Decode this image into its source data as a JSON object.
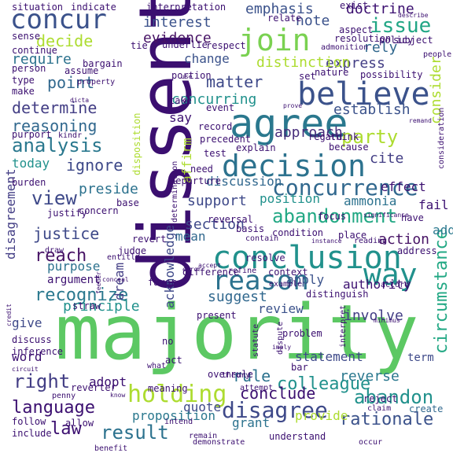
{
  "words": [
    {
      "text": "majority",
      "color": "#5cc863",
      "vertical": false
    },
    {
      "text": "dissent",
      "color": "#3b0f70",
      "vertical": true
    },
    {
      "text": "agree",
      "color": "#2a788e",
      "vertical": false
    },
    {
      "text": "believe",
      "color": "#3b528b",
      "vertical": false
    },
    {
      "text": "conclusion",
      "color": "#21918c",
      "vertical": false
    },
    {
      "text": "decision",
      "color": "#2c728e",
      "vertical": false
    },
    {
      "text": "reason",
      "color": "#2c728e",
      "vertical": false
    },
    {
      "text": "join",
      "color": "#7ad151",
      "vertical": false
    },
    {
      "text": "concur",
      "color": "#3b528b",
      "vertical": false
    },
    {
      "text": "holding",
      "color": "#addc30",
      "vertical": false
    },
    {
      "text": "way",
      "color": "#21918c",
      "vertical": false
    },
    {
      "text": "concurrence",
      "color": "#31688e",
      "vertical": false
    },
    {
      "text": "disagree",
      "color": "#3e4989",
      "vertical": false
    },
    {
      "text": "abandonment",
      "color": "#22a884",
      "vertical": false
    },
    {
      "text": "analysis",
      "color": "#2a788e",
      "vertical": false
    },
    {
      "text": "issue",
      "color": "#21a685",
      "vertical": false
    },
    {
      "text": "party",
      "color": "#addc30",
      "vertical": false
    },
    {
      "text": "right",
      "color": "#433e85",
      "vertical": false
    },
    {
      "text": "reach",
      "color": "#471365",
      "vertical": false
    },
    {
      "text": "result",
      "color": "#2c728e",
      "vertical": false
    },
    {
      "text": "view",
      "color": "#3e4989",
      "vertical": false
    },
    {
      "text": "language",
      "color": "#3b0f70",
      "vertical": false
    },
    {
      "text": "colleague",
      "color": "#21918c",
      "vertical": false
    },
    {
      "text": "rationale",
      "color": "#3b528b",
      "vertical": false
    },
    {
      "text": "abandon",
      "color": "#21918c",
      "vertical": false
    },
    {
      "text": "recognize",
      "color": "#2a788e",
      "vertical": false
    },
    {
      "text": "rule",
      "color": "#2c728e",
      "vertical": false
    },
    {
      "text": "circumstance",
      "color": "#22a884",
      "vertical": true
    },
    {
      "text": "consider",
      "color": "#addc30",
      "vertical": true
    },
    {
      "text": "matter",
      "color": "#3e4989",
      "vertical": false
    },
    {
      "text": "point",
      "color": "#31688e",
      "vertical": false
    },
    {
      "text": "determine",
      "color": "#433e85",
      "vertical": false
    },
    {
      "text": "support",
      "color": "#3e4989",
      "vertical": false
    },
    {
      "text": "justice",
      "color": "#3e4989",
      "vertical": false
    },
    {
      "text": "reasoning",
      "color": "#31688e",
      "vertical": false
    },
    {
      "text": "decide",
      "color": "#addc30",
      "vertical": false
    },
    {
      "text": "emphasis",
      "color": "#3b528b",
      "vertical": false
    },
    {
      "text": "doctrine",
      "color": "#3b0f70",
      "vertical": false
    },
    {
      "text": "interest",
      "color": "#3b528b",
      "vertical": false
    },
    {
      "text": "evidence",
      "color": "#471365",
      "vertical": false
    },
    {
      "text": "note",
      "color": "#3b528b",
      "vertical": false
    },
    {
      "text": "rely",
      "color": "#31688e",
      "vertical": false
    },
    {
      "text": "require",
      "color": "#2c728e",
      "vertical": false
    },
    {
      "text": "express",
      "color": "#433e85",
      "vertical": false
    },
    {
      "text": "establish",
      "color": "#3b528b",
      "vertical": false
    },
    {
      "text": "concurring",
      "color": "#21918c",
      "vertical": false
    },
    {
      "text": "distinction",
      "color": "#addc30",
      "vertical": false
    },
    {
      "text": "approach",
      "color": "#472d7b",
      "vertical": false
    },
    {
      "text": "cite",
      "color": "#433e85",
      "vertical": false
    },
    {
      "text": "effect",
      "color": "#3b0f70",
      "vertical": false
    },
    {
      "text": "ignore",
      "color": "#3e4989",
      "vertical": false
    },
    {
      "text": "today",
      "color": "#21918c",
      "vertical": false
    },
    {
      "text": "preside",
      "color": "#2c728e",
      "vertical": false
    },
    {
      "text": "discussion",
      "color": "#31688e",
      "vertical": false
    },
    {
      "text": "section",
      "color": "#3e4989",
      "vertical": false
    },
    {
      "text": "position",
      "color": "#21918c",
      "vertical": false
    },
    {
      "text": "ammonia",
      "color": "#2c728e",
      "vertical": false
    },
    {
      "text": "fail",
      "color": "#3b0f70",
      "vertical": false
    },
    {
      "text": "add",
      "color": "#2a788e",
      "vertical": false
    },
    {
      "text": "action",
      "color": "#471365",
      "vertical": false
    },
    {
      "text": "apply",
      "color": "#3b528b",
      "vertical": false
    },
    {
      "text": "authority",
      "color": "#3b0f70",
      "vertical": false
    },
    {
      "text": "suggest",
      "color": "#31688e",
      "vertical": false
    },
    {
      "text": "principle",
      "color": "#21918c",
      "vertical": false
    },
    {
      "text": "review",
      "color": "#3b528b",
      "vertical": false
    },
    {
      "text": "involve",
      "color": "#433e85",
      "vertical": false
    },
    {
      "text": "give",
      "color": "#3e4989",
      "vertical": false
    },
    {
      "text": "conclude",
      "color": "#3b0f70",
      "vertical": false
    },
    {
      "text": "reverse",
      "color": "#2a788e",
      "vertical": false
    },
    {
      "text": "law",
      "color": "#3b0f70",
      "vertical": false
    },
    {
      "text": "quote",
      "color": "#3e4989",
      "vertical": false
    },
    {
      "text": "grant",
      "color": "#2c728e",
      "vertical": false
    },
    {
      "text": "provide",
      "color": "#addc30",
      "vertical": false
    },
    {
      "text": "proposition",
      "color": "#2a788e",
      "vertical": false
    },
    {
      "text": "adopt",
      "color": "#3b0f70",
      "vertical": false
    },
    {
      "text": "word",
      "color": "#3b0f70",
      "vertical": false
    },
    {
      "text": "statement",
      "color": "#3e4989",
      "vertical": false
    },
    {
      "text": "term",
      "color": "#3e4989",
      "vertical": false
    },
    {
      "text": "create",
      "color": "#31688e",
      "vertical": false
    },
    {
      "text": "mean",
      "color": "#31688e",
      "vertical": false
    },
    {
      "text": "change",
      "color": "#3b528b",
      "vertical": false
    },
    {
      "text": "say",
      "color": "#3b0f70",
      "vertical": false
    },
    {
      "text": "purpose",
      "color": "#2c728e",
      "vertical": false
    },
    {
      "text": "argument",
      "color": "#3b0f70",
      "vertical": false
    },
    {
      "text": "disagreement",
      "color": "#433e85",
      "vertical": true
    },
    {
      "text": "acknowledge",
      "color": "#3e4989",
      "vertical": true
    },
    {
      "text": "dream",
      "color": "#433e85",
      "vertical": true
    },
    {
      "text": "affirm",
      "color": "#addc30",
      "vertical": true
    },
    {
      "text": "situation",
      "color": "#3b0f70",
      "vertical": false
    },
    {
      "text": "indicate",
      "color": "#3b0f70",
      "vertical": false
    },
    {
      "text": "interpretation",
      "color": "#3b0f70",
      "vertical": false
    },
    {
      "text": "sense",
      "color": "#3b0f70",
      "vertical": false
    },
    {
      "text": "subject",
      "color": "#3b0f70",
      "vertical": false
    },
    {
      "text": "resolution",
      "color": "#3b0f70",
      "vertical": false
    },
    {
      "text": "aspect",
      "color": "#3b0f70",
      "vertical": false
    },
    {
      "text": "relate",
      "color": "#3b0f70",
      "vertical": false
    },
    {
      "text": "exist",
      "color": "#3b0f70",
      "vertical": false
    },
    {
      "text": "policy",
      "color": "#3b0f70",
      "vertical": false
    },
    {
      "text": "describe",
      "color": "#3b0f70",
      "vertical": false
    },
    {
      "text": "people",
      "color": "#3b0f70",
      "vertical": false
    },
    {
      "text": "continue",
      "color": "#3b0f70",
      "vertical": false
    },
    {
      "text": "tie",
      "color": "#3b0f70",
      "vertical": false
    },
    {
      "text": "assume",
      "color": "#3b0f70",
      "vertical": false
    },
    {
      "text": "underlie",
      "color": "#3b0f70",
      "vertical": false
    },
    {
      "text": "respect",
      "color": "#3b0f70",
      "vertical": false
    },
    {
      "text": "person",
      "color": "#3b0f70",
      "vertical": false
    },
    {
      "text": "type",
      "color": "#3b0f70",
      "vertical": false
    },
    {
      "text": "make",
      "color": "#3b0f70",
      "vertical": false
    },
    {
      "text": "property",
      "color": "#3b0f70",
      "vertical": false
    },
    {
      "text": "bargain",
      "color": "#3b0f70",
      "vertical": false
    },
    {
      "text": "portion",
      "color": "#3b0f70",
      "vertical": false
    },
    {
      "text": "use",
      "color": "#3b0f70",
      "vertical": false
    },
    {
      "text": "nature",
      "color": "#3b0f70",
      "vertical": false
    },
    {
      "text": "possibility",
      "color": "#3b0f70",
      "vertical": false
    },
    {
      "text": "set",
      "color": "#3b0f70",
      "vertical": false
    },
    {
      "text": "take",
      "color": "#3b0f70",
      "vertical": false
    },
    {
      "text": "event",
      "color": "#3b0f70",
      "vertical": false
    },
    {
      "text": "record",
      "color": "#3b0f70",
      "vertical": false
    },
    {
      "text": "regard",
      "color": "#3b0f70",
      "vertical": false
    },
    {
      "text": "think",
      "color": "#3b0f70",
      "vertical": false
    },
    {
      "text": "remand",
      "color": "#3b0f70",
      "vertical": false
    },
    {
      "text": "consideration",
      "color": "#3b0f70",
      "vertical": true
    },
    {
      "text": "purport",
      "color": "#3b0f70",
      "vertical": false
    },
    {
      "text": "kindr",
      "color": "#3b0f70",
      "vertical": false
    },
    {
      "text": "disposition",
      "color": "#addc30",
      "vertical": true
    },
    {
      "text": "precedent",
      "color": "#3b0f70",
      "vertical": false
    },
    {
      "text": "because",
      "color": "#3b0f70",
      "vertical": false
    },
    {
      "text": "explain",
      "color": "#3b0f70",
      "vertical": false
    },
    {
      "text": "test",
      "color": "#3b0f70",
      "vertical": false
    },
    {
      "text": "burden",
      "color": "#3b0f70",
      "vertical": false
    },
    {
      "text": "need",
      "color": "#3b0f70",
      "vertical": false
    },
    {
      "text": "determination",
      "color": "#3b0f70",
      "vertical": true
    },
    {
      "text": "departure",
      "color": "#3b0f70",
      "vertical": false
    },
    {
      "text": "justify",
      "color": "#3b0f70",
      "vertical": false
    },
    {
      "text": "concern",
      "color": "#3b0f70",
      "vertical": false
    },
    {
      "text": "base",
      "color": "#3b0f70",
      "vertical": false
    },
    {
      "text": "reversal",
      "color": "#3b0f70",
      "vertical": false
    },
    {
      "text": "basis",
      "color": "#3b0f70",
      "vertical": false
    },
    {
      "text": "focus",
      "color": "#3b0f70",
      "vertical": false
    },
    {
      "text": "significance",
      "color": "#3b0f70",
      "vertical": false
    },
    {
      "text": "have",
      "color": "#3b0f70",
      "vertical": false
    },
    {
      "text": "draw",
      "color": "#3b0f70",
      "vertical": false
    },
    {
      "text": "judge",
      "color": "#3b0f70",
      "vertical": false
    },
    {
      "text": "revert",
      "color": "#3b0f70",
      "vertical": false
    },
    {
      "text": "contain",
      "color": "#3b0f70",
      "vertical": false
    },
    {
      "text": "resolve",
      "color": "#3b0f70",
      "vertical": false
    },
    {
      "text": "condition",
      "color": "#3b0f70",
      "vertical": false
    },
    {
      "text": "place",
      "color": "#3b0f70",
      "vertical": false
    },
    {
      "text": "reading",
      "color": "#3b0f70",
      "vertical": false
    },
    {
      "text": "address",
      "color": "#3b0f70",
      "vertical": false
    },
    {
      "text": "entitle",
      "color": "#3b0f70",
      "vertical": false
    },
    {
      "text": "difference",
      "color": "#3b0f70",
      "vertical": false
    },
    {
      "text": "refine",
      "color": "#3b0f70",
      "vertical": false
    },
    {
      "text": "context",
      "color": "#3b0f70",
      "vertical": false
    },
    {
      "text": "favor",
      "color": "#3b0f70",
      "vertical": false
    },
    {
      "text": "example",
      "color": "#3b0f70",
      "vertical": false
    },
    {
      "text": "accord",
      "color": "#3b0f70",
      "vertical": false
    },
    {
      "text": "straw",
      "color": "#3b0f70",
      "vertical": false
    },
    {
      "text": "present",
      "color": "#3b0f70",
      "vertical": false
    },
    {
      "text": "interpret",
      "color": "#3b0f70",
      "vertical": true
    },
    {
      "text": "distinguish",
      "color": "#3b0f70",
      "vertical": false
    },
    {
      "text": "discuss",
      "color": "#3b0f70",
      "vertical": false
    },
    {
      "text": "inference",
      "color": "#3b0f70",
      "vertical": false
    },
    {
      "text": "no",
      "color": "#3b0f70",
      "vertical": false
    },
    {
      "text": "problem",
      "color": "#3b0f70",
      "vertical": false
    },
    {
      "text": "act",
      "color": "#3b0f70",
      "vertical": false
    },
    {
      "text": "imply",
      "color": "#3b0f70",
      "vertical": false
    },
    {
      "text": "dispute",
      "color": "#3b0f70",
      "vertical": true
    },
    {
      "text": "statute",
      "color": "#3b0f70",
      "vertical": true
    },
    {
      "text": "what",
      "color": "#3b0f70",
      "vertical": false
    },
    {
      "text": "overrule",
      "color": "#3b0f70",
      "vertical": false
    },
    {
      "text": "bar",
      "color": "#3b0f70",
      "vertical": false
    },
    {
      "text": "reverter",
      "color": "#3b0f70",
      "vertical": false
    },
    {
      "text": "meaning",
      "color": "#3b0f70",
      "vertical": false
    },
    {
      "text": "theory",
      "color": "#3b0f70",
      "vertical": false
    },
    {
      "text": "attempt",
      "color": "#3b0f70",
      "vertical": false
    },
    {
      "text": "reject",
      "color": "#3b0f70",
      "vertical": false
    },
    {
      "text": "claim",
      "color": "#3b0f70",
      "vertical": false
    },
    {
      "text": "follow",
      "color": "#3b0f70",
      "vertical": false
    },
    {
      "text": "allow",
      "color": "#3b0f70",
      "vertical": false
    },
    {
      "text": "intend",
      "color": "#3b0f70",
      "vertical": false
    },
    {
      "text": "include",
      "color": "#3b0f70",
      "vertical": false
    },
    {
      "text": "remain",
      "color": "#3b0f70",
      "vertical": false
    },
    {
      "text": "demonstrate",
      "color": "#3b0f70",
      "vertical": false
    },
    {
      "text": "understand",
      "color": "#3b0f70",
      "vertical": false
    },
    {
      "text": "benefit",
      "color": "#3b0f70",
      "vertical": false
    },
    {
      "text": "occur",
      "color": "#3b0f70",
      "vertical": false
    },
    {
      "text": "penny",
      "color": "#3b0f70",
      "vertical": false
    },
    {
      "text": "know",
      "color": "#3b0f70",
      "vertical": false
    },
    {
      "text": "conceal",
      "color": "#3b0f70",
      "vertical": false
    },
    {
      "text": "minimus",
      "color": "#3b0f70",
      "vertical": false
    },
    {
      "text": "accept",
      "color": "#3b0f70",
      "vertical": false
    },
    {
      "text": "admonition",
      "color": "#3b0f70",
      "vertical": false
    },
    {
      "text": "instance",
      "color": "#3b0f70",
      "vertical": false
    },
    {
      "text": "prove",
      "color": "#3b0f70",
      "vertical": false
    },
    {
      "text": "circuit",
      "color": "#3b0f70",
      "vertical": false
    },
    {
      "text": "dicta",
      "color": "#3b0f70",
      "vertical": false
    },
    {
      "text": "error",
      "color": "#3b0f70",
      "vertical": false
    },
    {
      "text": "feeder",
      "color": "#3b0f70",
      "vertical": true
    },
    {
      "text": "credit",
      "color": "#3b0f70",
      "vertical": true
    }
  ]
}
